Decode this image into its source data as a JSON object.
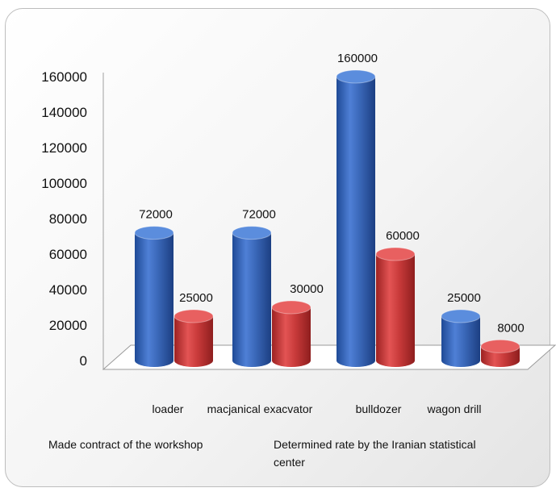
{
  "chart_data": {
    "type": "bar",
    "categories": [
      "loader",
      "macjanical exacvator",
      "bulldozer",
      "wagon drill"
    ],
    "series": [
      {
        "name": "Made contract of the workshop",
        "color": "#3a67b8",
        "values": [
          72000,
          72000,
          160000,
          25000
        ]
      },
      {
        "name": "Determined rate  by the Iranian statistical center",
        "color": "#c83a3a",
        "values": [
          25000,
          30000,
          60000,
          8000
        ]
      }
    ],
    "yticks": [
      0,
      20000,
      40000,
      60000,
      80000,
      100000,
      120000,
      140000,
      160000
    ],
    "ylim": [
      0,
      160000
    ],
    "data_labels": true,
    "legend_position": "bottom",
    "style": "3d-cylinder"
  }
}
